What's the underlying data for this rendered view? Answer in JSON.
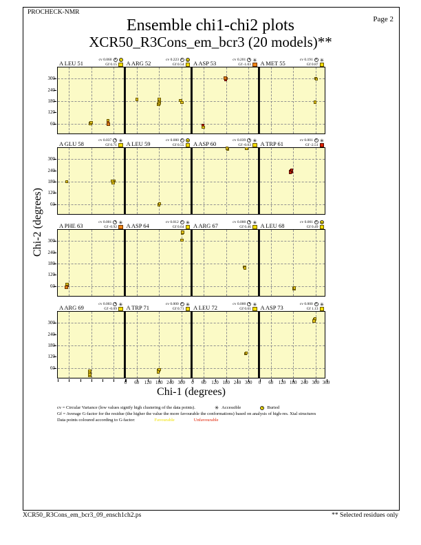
{
  "header": {
    "app_label": "PROCHECK-NMR",
    "page_label": "Page  2",
    "title": "Ensemble chi1-chi2 plots",
    "subtitle": "XCR50_R3Cons_em_bcr3 (20 models)**"
  },
  "labels": {
    "cv_prefix": "cv",
    "gf_prefix": "Gf"
  },
  "axes": {
    "xlabel": "Chi-1 (degrees)",
    "ylabel": "Chi-2 (degrees)",
    "x_range": [
      0,
      360
    ],
    "y_range": [
      0,
      360
    ],
    "xtick_values": [
      0,
      60,
      120,
      180,
      240,
      300
    ],
    "xtick_last": "360",
    "xtick_labeled_columns": [
      1,
      2,
      3
    ],
    "ytick_values": [
      60,
      120,
      180,
      240,
      300
    ],
    "grid_lines_deg": [
      60,
      180,
      300
    ]
  },
  "legend": {
    "cv_line": "cv = Circular Variance (low values signify high clustering of the data points).",
    "accessible_label": "Accessible",
    "buried_label": "Buried",
    "gf_line": "Gf = Average G-factor for the residue (the higher the value the more favourable the conformations) based on analysis of high-res. Xtal structures",
    "colour_line_prefix": "Data points coloured according to G-factor:",
    "favourable_label": "Favourable",
    "unfavourable_label": "Unfavourable"
  },
  "footer": {
    "left": "XCR50_R3Cons_em_bcr3_09_ensch1ch2.ps",
    "right": "** Selected residues only"
  },
  "colors": {
    "plot_bg": "#FBFAC6",
    "grid": "#909090",
    "favourable": "#E2C419",
    "unfavourable_orange": "#DE7E19",
    "unfavourable_red": "#C41E0A"
  },
  "chart_data": {
    "type": "scatter",
    "grid": "dashed at 60/180/300 degrees both axes",
    "subplots": [
      {
        "residue": "A LEU 51",
        "cv": "0.060",
        "gf": "0.15",
        "accessibility": "buried",
        "gf_class": "fav",
        "points": [
          [
            176,
            60,
            "fav"
          ],
          [
            179,
            67,
            "fav"
          ],
          [
            269,
            75,
            "fav"
          ],
          [
            270,
            66,
            "orange"
          ],
          [
            271,
            57,
            "orange"
          ]
        ]
      },
      {
        "residue": "A ARG 52",
        "cv": "0.223",
        "gf": "0.54",
        "accessibility": "buried",
        "gf_class": "fav",
        "points": [
          [
            60,
            190,
            "fav"
          ],
          [
            178,
            163,
            "fav"
          ],
          [
            181,
            170,
            "fav"
          ],
          [
            179,
            177,
            "fav"
          ],
          [
            182,
            184,
            "fav"
          ],
          [
            180,
            191,
            "fav"
          ],
          [
            296,
            184,
            "fav"
          ],
          [
            302,
            172,
            "fav"
          ]
        ]
      },
      {
        "residue": "A ASP 53",
        "cv": "0.201",
        "gf": "-1.03",
        "accessibility": "accessible",
        "gf_class": "orange",
        "points": [
          [
            178,
            296,
            "red"
          ],
          [
            181,
            301,
            "orange"
          ],
          [
            176,
            303,
            "orange"
          ],
          [
            55,
            50,
            "red"
          ],
          [
            58,
            40,
            "fav"
          ]
        ]
      },
      {
        "residue": "A MET 55",
        "cv": "0.191",
        "gf": "0.87",
        "accessibility": "accessible",
        "gf_class": "fav",
        "points": [
          [
            301,
            302,
            "fav"
          ],
          [
            305,
            297,
            "fav"
          ],
          [
            298,
            174,
            "fav"
          ]
        ]
      },
      {
        "residue": "A GLU 58",
        "cv": "0.037",
        "gf": "0.71",
        "accessibility": "accessible",
        "gf_class": "fav",
        "points": [
          [
            48,
            180,
            "fav"
          ],
          [
            296,
            178,
            "fav"
          ],
          [
            301,
            183,
            "fav"
          ],
          [
            298,
            174,
            "fav"
          ],
          [
            294,
            184,
            "fav"
          ]
        ]
      },
      {
        "residue": "A LEU 59",
        "cv": "0.000",
        "gf": "0.55",
        "accessibility": "buried",
        "gf_class": "fav",
        "points": [
          [
            179,
            57,
            "fav"
          ],
          [
            183,
            62,
            "fav"
          ]
        ]
      },
      {
        "residue": "A ASP 60",
        "cv": "0.039",
        "gf": "-0.03",
        "accessibility": "accessible",
        "gf_class": "fav",
        "points": [
          [
            188,
            355,
            "fav"
          ],
          [
            185,
            358,
            "fav"
          ],
          [
            289,
            356,
            "fav"
          ]
        ]
      },
      {
        "residue": "A TRP 61",
        "cv": "0.001",
        "gf": "-2.51",
        "accessibility": "accessible",
        "gf_class": "red",
        "points": [
          [
            167,
            235,
            "red"
          ],
          [
            172,
            231,
            "red"
          ],
          [
            169,
            239,
            "red"
          ],
          [
            165,
            229,
            "red"
          ],
          [
            171,
            242,
            "red"
          ]
        ]
      },
      {
        "residue": "A PHE 63",
        "cv": "0.001",
        "gf": "-0.92",
        "accessibility": "accessible",
        "gf_class": "orange",
        "points": [
          [
            48,
            57,
            "orange"
          ],
          [
            51,
            63,
            "red"
          ],
          [
            49,
            70,
            "fav"
          ],
          [
            46,
            53,
            "orange"
          ]
        ]
      },
      {
        "residue": "A ASP 64",
        "cv": "0.012",
        "gf": "0.64",
        "accessibility": "accessible",
        "gf_class": "fav",
        "points": [
          [
            304,
            343,
            "fav"
          ],
          [
            307,
            347,
            "fav"
          ],
          [
            303,
            305,
            "fav"
          ]
        ]
      },
      {
        "residue": "A ARG 67",
        "cv": "0.000",
        "gf": "0.46",
        "accessibility": "accessible",
        "gf_class": "fav",
        "points": [
          [
            278,
            161,
            "fav"
          ],
          [
            281,
            157,
            "fav"
          ]
        ]
      },
      {
        "residue": "A LEU 68",
        "cv": "0.001",
        "gf": "0.49",
        "accessibility": "buried",
        "gf_class": "fav",
        "points": [
          [
            184,
            46,
            "fav"
          ],
          [
            187,
            50,
            "fav"
          ]
        ]
      },
      {
        "residue": "A ARG 69",
        "cv": "0.003",
        "gf": "-0.09",
        "accessibility": "accessible",
        "gf_class": "fav",
        "points": [
          [
            171,
            20,
            "fav"
          ],
          [
            172,
            28,
            "fav"
          ],
          [
            170,
            36,
            "fav"
          ],
          [
            172,
            44,
            "fav"
          ]
        ]
      },
      {
        "residue": "A TRP 71",
        "cv": "0.000",
        "gf": "0.71",
        "accessibility": "accessible",
        "gf_class": "fav",
        "points": [
          [
            177,
            46,
            "fav"
          ],
          [
            180,
            51,
            "fav"
          ],
          [
            175,
            39,
            "fav"
          ]
        ]
      },
      {
        "residue": "A LEU 72",
        "cv": "0.000",
        "gf": "0.61",
        "accessibility": "accessible",
        "gf_class": "fav",
        "points": [
          [
            285,
            136,
            "fav"
          ],
          [
            288,
            140,
            "fav"
          ]
        ]
      },
      {
        "residue": "A ASP 73",
        "cv": "0.000",
        "gf": "1.13",
        "accessibility": "accessible",
        "gf_class": "fav",
        "points": [
          [
            293,
            317,
            "fav"
          ],
          [
            297,
            321,
            "fav"
          ],
          [
            291,
            311,
            "fav"
          ]
        ]
      }
    ]
  }
}
